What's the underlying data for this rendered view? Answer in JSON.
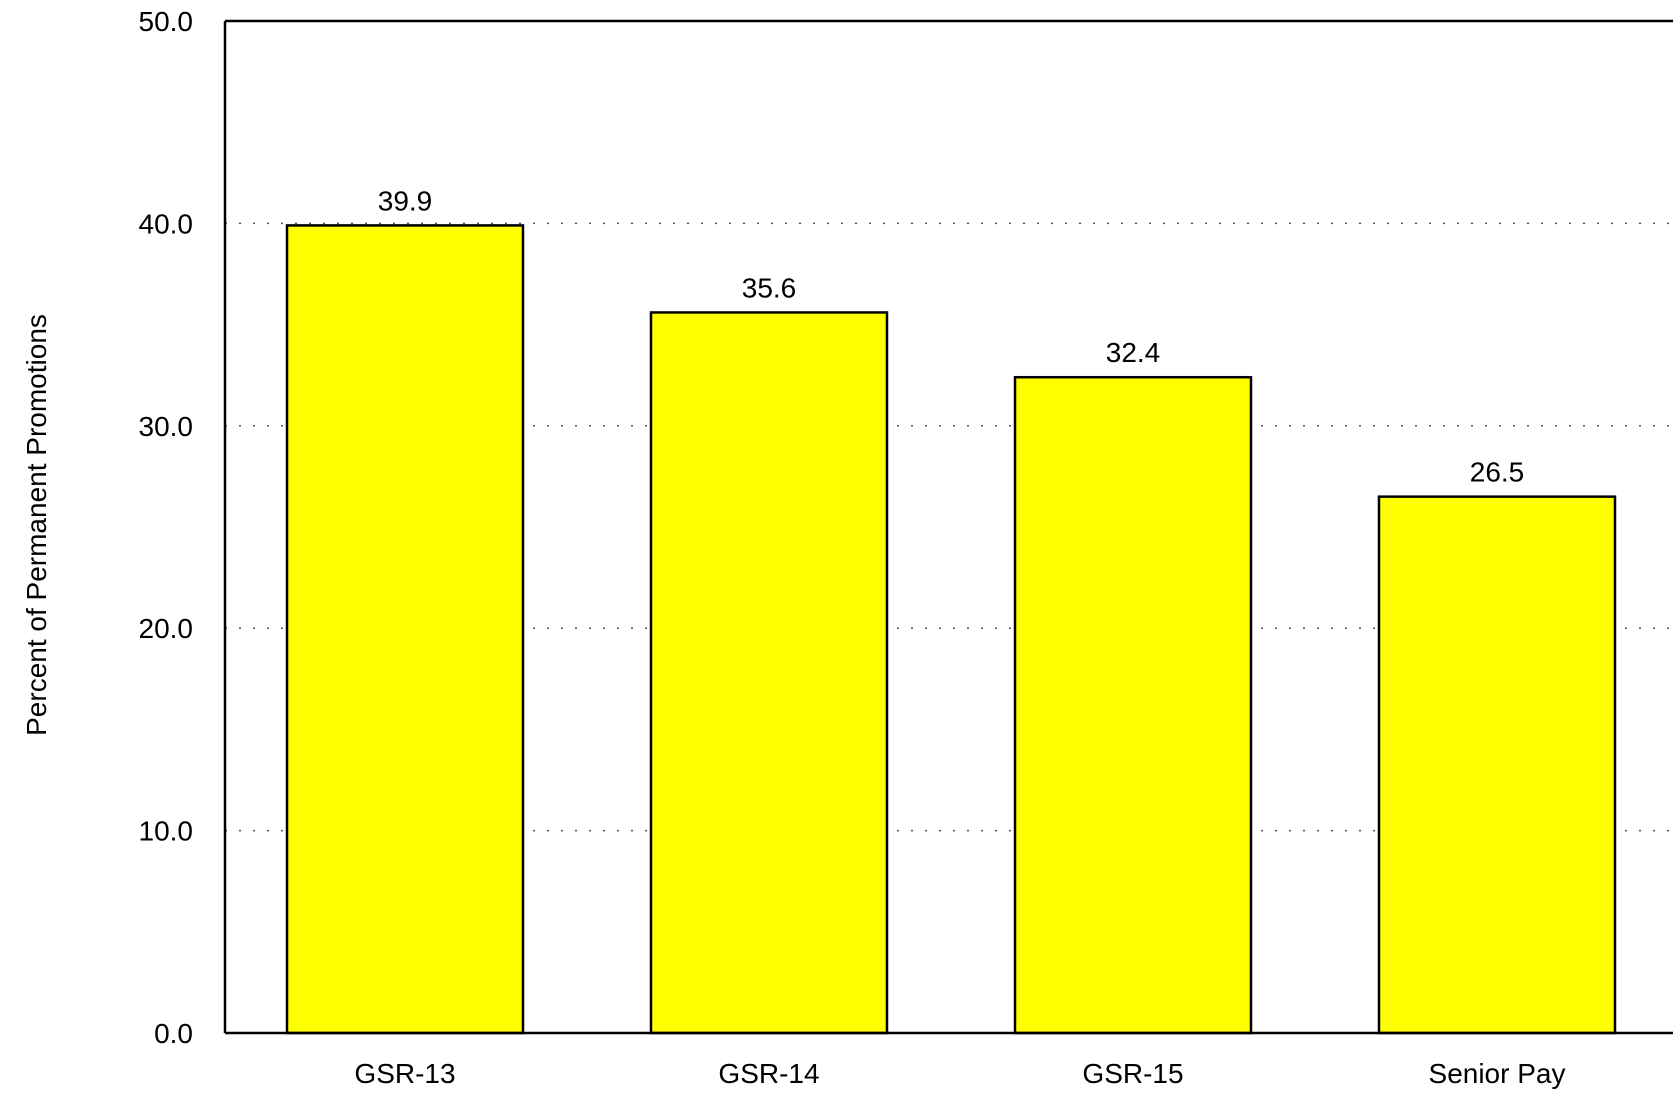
{
  "chart_data": {
    "type": "bar",
    "title": "",
    "xlabel": "",
    "ylabel": "Percent of Permanent Promotions",
    "categories": [
      "GSR-13",
      "GSR-14",
      "GSR-15",
      "Senior Pay"
    ],
    "values": [
      39.9,
      35.6,
      32.4,
      26.5
    ],
    "data_labels": [
      "39.9",
      "35.6",
      "32.4",
      "26.5"
    ],
    "ylim": [
      0,
      50
    ],
    "yticks": [
      0,
      10,
      20,
      30,
      40,
      50
    ],
    "ytick_labels": [
      "0.0",
      "10.0",
      "20.0",
      "30.0",
      "40.0",
      "50.0"
    ],
    "grid": "horizontal dotted",
    "legend": "none",
    "bar_color": "#FFFF00",
    "bar_edge_color": "#000000",
    "grid_color": "#555555"
  }
}
